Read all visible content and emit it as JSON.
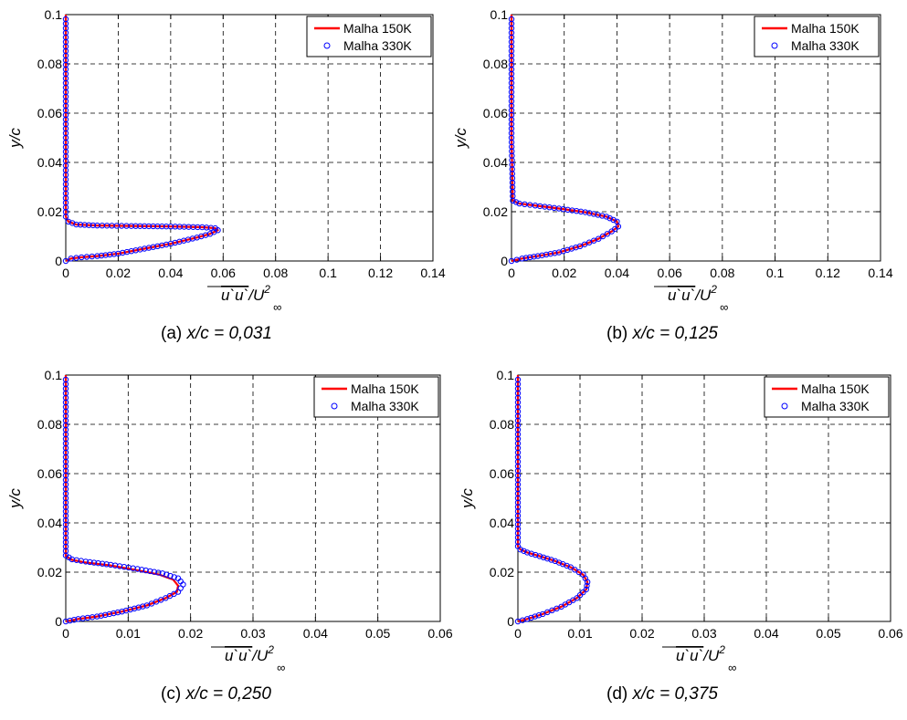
{
  "chart_data": [
    {
      "type": "line",
      "caption_label": "(a)",
      "caption_value": "x/c = 0,031",
      "ylabel": "y/c",
      "xlabel_main": "u`u`",
      "xlabel_rest": "/U",
      "xlabel_sup": "2",
      "xlabel_sub": "∞",
      "xlim": [
        0,
        0.14
      ],
      "ylim": [
        0,
        0.1
      ],
      "xticks": [
        0,
        0.02,
        0.04,
        0.06,
        0.08,
        0.1,
        0.12,
        0.14
      ],
      "xtick_labels": [
        "0",
        "0.02",
        "0.04",
        "0.06",
        "0.08",
        "0.1",
        "0.12",
        "0.14"
      ],
      "yticks": [
        0,
        0.02,
        0.04,
        0.06,
        0.08,
        0.1
      ],
      "ytick_labels": [
        "0",
        "0.02",
        "0.04",
        "0.06",
        "0.08",
        "0.1"
      ],
      "grid": true,
      "legend_position": "top-right",
      "series": [
        {
          "name": "Malha 150K",
          "color": "#ff0000",
          "style": "line",
          "x": [
            0,
            0.002,
            0.006,
            0.012,
            0.02,
            0.03,
            0.04,
            0.05,
            0.055,
            0.058,
            0.057,
            0.052,
            0.04,
            0.025,
            0.012,
            0.004,
            0.001,
            0,
            0,
            0
          ],
          "y": [
            0.0,
            0.001,
            0.0015,
            0.002,
            0.003,
            0.005,
            0.007,
            0.0095,
            0.011,
            0.0125,
            0.0133,
            0.0137,
            0.014,
            0.0142,
            0.0144,
            0.0148,
            0.016,
            0.018,
            0.05,
            0.1
          ]
        },
        {
          "name": "Malha 330K",
          "color": "#0000ff",
          "style": "marker",
          "x": [
            0,
            0.002,
            0.006,
            0.012,
            0.02,
            0.03,
            0.04,
            0.05,
            0.055,
            0.058,
            0.057,
            0.052,
            0.04,
            0.025,
            0.012,
            0.004,
            0.001,
            0,
            0,
            0
          ],
          "y": [
            0.0,
            0.001,
            0.0015,
            0.002,
            0.003,
            0.005,
            0.007,
            0.0095,
            0.011,
            0.0125,
            0.0133,
            0.0137,
            0.014,
            0.0142,
            0.0144,
            0.0148,
            0.016,
            0.018,
            0.05,
            0.1
          ]
        }
      ]
    },
    {
      "type": "line",
      "caption_label": "(b)",
      "caption_value": "x/c = 0,125",
      "ylabel": "y/c",
      "xlabel_main": "u`u`",
      "xlabel_rest": "/U",
      "xlabel_sup": "2",
      "xlabel_sub": "∞",
      "xlim": [
        0,
        0.14
      ],
      "ylim": [
        0,
        0.1
      ],
      "xticks": [
        0,
        0.02,
        0.04,
        0.06,
        0.08,
        0.1,
        0.12,
        0.14
      ],
      "xtick_labels": [
        "0",
        "0.02",
        "0.04",
        "0.06",
        "0.08",
        "0.1",
        "0.12",
        "0.14"
      ],
      "yticks": [
        0,
        0.02,
        0.04,
        0.06,
        0.08,
        0.1
      ],
      "ytick_labels": [
        "0",
        "0.02",
        "0.04",
        "0.06",
        "0.08",
        "0.1"
      ],
      "grid": true,
      "legend_position": "top-right",
      "series": [
        {
          "name": "Malha 150K",
          "color": "#ff0000",
          "style": "line",
          "x": [
            0,
            0.004,
            0.01,
            0.018,
            0.026,
            0.033,
            0.038,
            0.0405,
            0.04,
            0.036,
            0.028,
            0.018,
            0.009,
            0.003,
            0.0005,
            0,
            0
          ],
          "y": [
            0.0,
            0.001,
            0.002,
            0.0035,
            0.006,
            0.009,
            0.012,
            0.014,
            0.016,
            0.018,
            0.0198,
            0.0213,
            0.0225,
            0.0233,
            0.0245,
            0.05,
            0.1
          ]
        },
        {
          "name": "Malha 330K",
          "color": "#0000ff",
          "style": "marker",
          "x": [
            0,
            0.004,
            0.01,
            0.018,
            0.026,
            0.033,
            0.038,
            0.0405,
            0.04,
            0.036,
            0.028,
            0.018,
            0.009,
            0.003,
            0.0005,
            0,
            0
          ],
          "y": [
            0.0,
            0.001,
            0.002,
            0.0035,
            0.006,
            0.009,
            0.012,
            0.014,
            0.016,
            0.018,
            0.0198,
            0.0213,
            0.0225,
            0.0233,
            0.0245,
            0.05,
            0.1
          ]
        }
      ]
    },
    {
      "type": "line",
      "caption_label": "(c)",
      "caption_value": "x/c = 0,250",
      "ylabel": "y/c",
      "xlabel_main": "u`u`",
      "xlabel_rest": "/U",
      "xlabel_sup": "2",
      "xlabel_sub": "∞",
      "xlim": [
        0,
        0.06
      ],
      "ylim": [
        0,
        0.1
      ],
      "xticks": [
        0,
        0.01,
        0.02,
        0.03,
        0.04,
        0.05,
        0.06
      ],
      "xtick_labels": [
        "0",
        "0.01",
        "0.02",
        "0.03",
        "0.04",
        "0.05",
        "0.06"
      ],
      "yticks": [
        0,
        0.02,
        0.04,
        0.06,
        0.08,
        0.1
      ],
      "ytick_labels": [
        "0",
        "0.02",
        "0.04",
        "0.06",
        "0.08",
        "0.1"
      ],
      "grid": true,
      "legend_position": "top-right",
      "series": [
        {
          "name": "Malha 150K",
          "color": "#ff0000",
          "style": "line",
          "x": [
            0,
            0.002,
            0.005,
            0.009,
            0.013,
            0.016,
            0.0178,
            0.018,
            0.0172,
            0.015,
            0.011,
            0.007,
            0.003,
            0.001,
            0,
            0,
            0
          ],
          "y": [
            0.0,
            0.001,
            0.002,
            0.004,
            0.0065,
            0.0095,
            0.012,
            0.0145,
            0.017,
            0.019,
            0.021,
            0.0228,
            0.024,
            0.025,
            0.0265,
            0.05,
            0.1
          ]
        },
        {
          "name": "Malha 330K",
          "color": "#0000ff",
          "style": "marker",
          "x": [
            0,
            0.002,
            0.005,
            0.009,
            0.013,
            0.016,
            0.018,
            0.0188,
            0.018,
            0.0155,
            0.0115,
            0.0072,
            0.0032,
            0.001,
            0,
            0,
            0
          ],
          "y": [
            0.0,
            0.001,
            0.002,
            0.004,
            0.0065,
            0.0095,
            0.012,
            0.015,
            0.0175,
            0.0195,
            0.0213,
            0.023,
            0.0243,
            0.0252,
            0.0268,
            0.05,
            0.1
          ]
        }
      ]
    },
    {
      "type": "line",
      "caption_label": "(d)",
      "caption_value": "x/c = 0,375",
      "ylabel": "y/c",
      "xlabel_main": "u`u`",
      "xlabel_rest": "/U",
      "xlabel_sup": "2",
      "xlabel_sub": "∞",
      "xlim": [
        0,
        0.06
      ],
      "ylim": [
        0,
        0.1
      ],
      "xticks": [
        0,
        0.01,
        0.02,
        0.03,
        0.04,
        0.05,
        0.06
      ],
      "xtick_labels": [
        "0",
        "0.01",
        "0.02",
        "0.03",
        "0.04",
        "0.05",
        "0.06"
      ],
      "yticks": [
        0,
        0.02,
        0.04,
        0.06,
        0.08,
        0.1
      ],
      "ytick_labels": [
        "0",
        "0.02",
        "0.04",
        "0.06",
        "0.08",
        "0.1"
      ],
      "grid": true,
      "legend_position": "top-right",
      "series": [
        {
          "name": "Malha 150K",
          "color": "#ff0000",
          "style": "line",
          "x": [
            0,
            0.0015,
            0.004,
            0.007,
            0.0095,
            0.011,
            0.0112,
            0.0105,
            0.0085,
            0.006,
            0.0035,
            0.0015,
            0.0004,
            0,
            0,
            0
          ],
          "y": [
            0.0,
            0.001,
            0.003,
            0.006,
            0.0095,
            0.013,
            0.016,
            0.019,
            0.022,
            0.0245,
            0.0265,
            0.028,
            0.0292,
            0.0305,
            0.05,
            0.1
          ]
        },
        {
          "name": "Malha 330K",
          "color": "#0000ff",
          "style": "marker",
          "x": [
            0,
            0.0015,
            0.004,
            0.007,
            0.0095,
            0.011,
            0.0112,
            0.0105,
            0.0085,
            0.006,
            0.0035,
            0.0015,
            0.0004,
            0,
            0,
            0
          ],
          "y": [
            0.0,
            0.001,
            0.003,
            0.006,
            0.0095,
            0.013,
            0.016,
            0.019,
            0.022,
            0.0245,
            0.0265,
            0.028,
            0.0292,
            0.0305,
            0.05,
            0.1
          ]
        }
      ]
    }
  ]
}
